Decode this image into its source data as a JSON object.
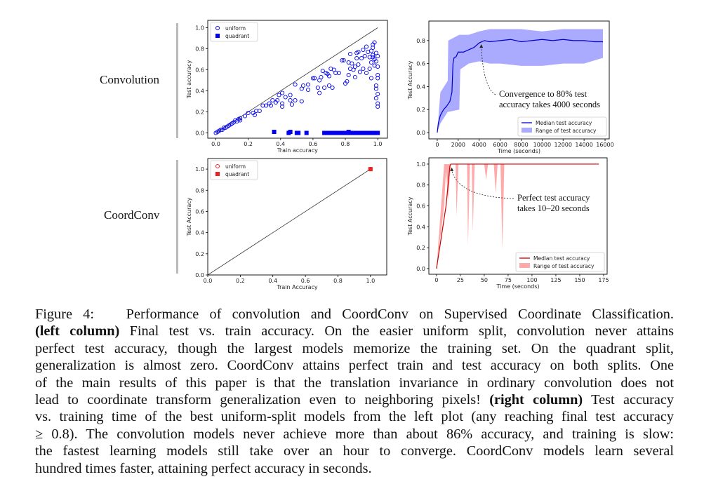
{
  "rows": {
    "top": "Convolution",
    "bottom": "CoordConv"
  },
  "chart_data": [
    {
      "type": "scatter",
      "xlabel": "Train accuracy",
      "ylabel": "Test accuracy",
      "xlim": [
        -0.05,
        1.06
      ],
      "ylim": [
        -0.05,
        1.07
      ],
      "xticks": [
        "0.0",
        "0.2",
        "0.4",
        "0.6",
        "0.8",
        "1.0"
      ],
      "yticks": [
        "0.0",
        "0.2",
        "0.4",
        "0.6",
        "0.8",
        "1.0"
      ],
      "legend": "top-left",
      "color": "#0000ee",
      "series": [
        {
          "name": "uniform",
          "marker": "open-circle",
          "points": [
            [
              0,
              0
            ],
            [
              0.01,
              0.01
            ],
            [
              0.02,
              0.02
            ],
            [
              0.03,
              0.03
            ],
            [
              0.04,
              0.03
            ],
            [
              0.05,
              0.05
            ],
            [
              0.06,
              0.05
            ],
            [
              0.07,
              0.06
            ],
            [
              0.08,
              0.07
            ],
            [
              0.09,
              0.08
            ],
            [
              0.1,
              0.09
            ],
            [
              0.11,
              0.1
            ],
            [
              0.12,
              0.12
            ],
            [
              0.13,
              0.11
            ],
            [
              0.14,
              0.13
            ],
            [
              0.15,
              0.14
            ],
            [
              0.15,
              0.12
            ],
            [
              0.18,
              0.16
            ],
            [
              0.2,
              0.19
            ],
            [
              0.23,
              0.19
            ],
            [
              0.24,
              0.17
            ],
            [
              0.25,
              0.21
            ],
            [
              0.27,
              0.21
            ],
            [
              0.29,
              0.26
            ],
            [
              0.31,
              0.26
            ],
            [
              0.33,
              0.28
            ],
            [
              0.34,
              0.26
            ],
            [
              0.35,
              0.31
            ],
            [
              0.37,
              0.29
            ],
            [
              0.38,
              0.31
            ],
            [
              0.39,
              0.36
            ],
            [
              0.41,
              0.28
            ],
            [
              0.41,
              0.25
            ],
            [
              0.41,
              0.38
            ],
            [
              0.43,
              0.34
            ],
            [
              0.46,
              0.36
            ],
            [
              0.46,
              0.31
            ],
            [
              0.47,
              0.27
            ],
            [
              0.49,
              0.31
            ],
            [
              0.49,
              0.46
            ],
            [
              0.53,
              0.42
            ],
            [
              0.54,
              0.45
            ],
            [
              0.53,
              0.3
            ],
            [
              0.57,
              0.41
            ],
            [
              0.57,
              0.46
            ],
            [
              0.6,
              0.52
            ],
            [
              0.61,
              0.52
            ],
            [
              0.63,
              0.43
            ],
            [
              0.64,
              0.38
            ],
            [
              0.64,
              0.5
            ],
            [
              0.65,
              0.53
            ],
            [
              0.66,
              0.59
            ],
            [
              0.67,
              0.43
            ],
            [
              0.68,
              0.57
            ],
            [
              0.69,
              0.56
            ],
            [
              0.7,
              0.45
            ],
            [
              0.7,
              0.54
            ],
            [
              0.71,
              0.61
            ],
            [
              0.72,
              0.43
            ],
            [
              0.73,
              0.6
            ],
            [
              0.74,
              0.57
            ],
            [
              0.76,
              0.57
            ],
            [
              0.78,
              0.69
            ],
            [
              0.79,
              0.69
            ],
            [
              0.8,
              0.47
            ],
            [
              0.81,
              0.49
            ],
            [
              0.82,
              0.67
            ],
            [
              0.82,
              0.55
            ],
            [
              0.83,
              0.61
            ],
            [
              0.83,
              0.75
            ],
            [
              0.84,
              0.66
            ],
            [
              0.85,
              0.6
            ],
            [
              0.86,
              0.53
            ],
            [
              0.86,
              0.63
            ],
            [
              0.87,
              0.71
            ],
            [
              0.87,
              0.76
            ],
            [
              0.88,
              0.65
            ],
            [
              0.88,
              0.77
            ],
            [
              0.89,
              0.58
            ],
            [
              0.9,
              0.71
            ],
            [
              0.91,
              0.61
            ],
            [
              0.91,
              0.79
            ],
            [
              0.92,
              0.73
            ],
            [
              0.93,
              0.57
            ],
            [
              0.93,
              0.82
            ],
            [
              0.94,
              0.77
            ],
            [
              0.95,
              0.72
            ],
            [
              0.95,
              0.61
            ],
            [
              0.96,
              0.52
            ],
            [
              0.96,
              0.67
            ],
            [
              0.97,
              0.81
            ],
            [
              0.97,
              0.84
            ],
            [
              0.97,
              0.74
            ],
            [
              0.98,
              0.86
            ],
            [
              0.98,
              0.7
            ],
            [
              0.98,
              0.64
            ],
            [
              0.99,
              0.45
            ],
            [
              0.99,
              0.42
            ],
            [
              0.99,
              0.33
            ],
            [
              0.99,
              0.76
            ],
            [
              1.0,
              0.63
            ],
            [
              1.0,
              0.55
            ],
            [
              1.0,
              0.52
            ],
            [
              1.0,
              0.37
            ],
            [
              1.0,
              0.28
            ],
            [
              1.0,
              0.25
            ],
            [
              1.0,
              0.73
            ],
            [
              0.99,
              0.68
            ],
            [
              0.97,
              0.72
            ],
            [
              0.96,
              0.78
            ]
          ]
        },
        {
          "name": "quadrant",
          "marker": "filled-square",
          "points": [
            [
              0.36,
              0.01
            ],
            [
              0.45,
              0
            ],
            [
              0.46,
              0.01
            ],
            [
              0.5,
              0
            ],
            [
              0.51,
              0
            ],
            [
              0.56,
              0
            ],
            [
              0.67,
              0
            ],
            [
              0.69,
              0
            ],
            [
              0.71,
              0
            ],
            [
              0.72,
              0
            ],
            [
              0.73,
              0
            ],
            [
              0.74,
              0
            ],
            [
              0.75,
              0
            ],
            [
              0.76,
              0
            ],
            [
              0.77,
              0
            ],
            [
              0.78,
              0
            ],
            [
              0.79,
              0
            ],
            [
              0.8,
              0
            ],
            [
              0.81,
              0
            ],
            [
              0.82,
              0.01
            ],
            [
              0.83,
              0
            ],
            [
              0.84,
              0
            ],
            [
              0.85,
              0
            ],
            [
              0.86,
              0
            ],
            [
              0.87,
              0
            ],
            [
              0.88,
              0
            ],
            [
              0.89,
              0
            ],
            [
              0.9,
              0
            ],
            [
              0.91,
              0
            ],
            [
              0.92,
              0
            ],
            [
              0.93,
              0
            ],
            [
              0.94,
              0
            ],
            [
              0.95,
              0
            ],
            [
              0.96,
              0
            ],
            [
              0.97,
              0
            ],
            [
              0.98,
              0
            ],
            [
              0.99,
              0
            ],
            [
              1.0,
              0
            ]
          ]
        }
      ],
      "reference_line": "y = x"
    },
    {
      "type": "line",
      "xlabel": "Time (seconds)",
      "ylabel": "Test Accuracy",
      "xlim": [
        -800,
        16400
      ],
      "ylim": [
        -0.055,
        0.97
      ],
      "xticks": [
        "0",
        "2000",
        "4000",
        "6000",
        "8000",
        "10000",
        "12000",
        "14000",
        "16000"
      ],
      "yticks": [
        "0.0",
        "0.2",
        "0.4",
        "0.6",
        "0.8"
      ],
      "legend": "bottom-right",
      "line_color": "#0000cc",
      "band_color": "#aaaaff",
      "series": [
        {
          "name": "Median test accuracy",
          "x": [
            0,
            100,
            300,
            600,
            900,
            1200,
            1400,
            1500,
            1600,
            1800,
            2000,
            2500,
            3000,
            3500,
            4000,
            4500,
            5000,
            6000,
            7000,
            8000,
            9000,
            10000,
            11000,
            12000,
            13000,
            14000,
            15000,
            15800
          ],
          "y": [
            0,
            0.08,
            0.15,
            0.2,
            0.23,
            0.27,
            0.35,
            0.6,
            0.65,
            0.66,
            0.7,
            0.7,
            0.72,
            0.74,
            0.78,
            0.8,
            0.79,
            0.8,
            0.81,
            0.79,
            0.8,
            0.81,
            0.8,
            0.81,
            0.8,
            0.8,
            0.79,
            0.79
          ]
        },
        {
          "name": "Range of test accuracy",
          "x": [
            0,
            300,
            1000,
            1050,
            2100,
            2200,
            3000,
            4000,
            5000,
            6000,
            8000,
            10000,
            12000,
            14000,
            15800
          ],
          "lower": [
            0,
            0.08,
            0.18,
            0.18,
            0.2,
            0.55,
            0.6,
            0.62,
            0.6,
            0.6,
            0.58,
            0.58,
            0.6,
            0.6,
            0.65
          ],
          "upper": [
            0,
            0.35,
            0.45,
            0.8,
            0.85,
            0.85,
            0.85,
            0.88,
            0.9,
            0.9,
            0.9,
            0.88,
            0.9,
            0.9,
            0.9
          ]
        }
      ],
      "annotation": {
        "lines": [
          "Convergence to 80% test",
          "accuracy takes 4000 seconds"
        ],
        "target": [
          4200,
          0.78
        ]
      }
    },
    {
      "type": "scatter",
      "xlabel": "Train Accuracy",
      "ylabel": "Test Accuracy",
      "xlim": [
        0,
        1.1
      ],
      "ylim": [
        0,
        1.1
      ],
      "xticks": [
        "0.0",
        "0.2",
        "0.4",
        "0.6",
        "0.8",
        "1.0"
      ],
      "yticks": [
        "0.0",
        "0.2",
        "0.4",
        "0.6",
        "0.8",
        "1.0"
      ],
      "legend": "top-left",
      "color": "#ee2222",
      "series": [
        {
          "name": "uniform",
          "marker": "open-circle",
          "points": [
            [
              1.0,
              1.0
            ]
          ]
        },
        {
          "name": "quadrant",
          "marker": "filled-square",
          "points": [
            [
              1.0,
              1.0
            ]
          ]
        }
      ],
      "reference_line": "y = x"
    },
    {
      "type": "line",
      "xlabel": "Time (seconds)",
      "ylabel": "Test Accuracy",
      "xlim": [
        -8,
        178.7
      ],
      "ylim": [
        -0.054,
        1.06
      ],
      "xticks": [
        "0",
        "25",
        "50",
        "75",
        "100",
        "125",
        "150",
        "175"
      ],
      "yticks": [
        "0.0",
        "0.2",
        "0.4",
        "0.6",
        "0.8",
        "1.0"
      ],
      "legend": "bottom-right",
      "line_color": "#cc0000",
      "band_color": "#ffaaaa",
      "series": [
        {
          "name": "Median test accuracy",
          "x": [
            0,
            5,
            10,
            14,
            15,
            170
          ],
          "y": [
            0,
            0.3,
            0.6,
            0.98,
            1.0,
            1.0
          ]
        },
        {
          "name": "Range of test accuracy",
          "x": [
            0,
            8,
            10,
            12,
            15,
            20,
            21,
            23,
            32,
            33,
            35,
            37,
            38,
            40,
            50,
            52,
            54,
            60,
            62,
            64,
            67,
            69,
            71,
            170
          ],
          "lower": [
            0,
            0.6,
            0.95,
            0.65,
            1,
            1,
            0.5,
            1,
            1,
            0.22,
            1,
            1,
            0.35,
            1,
            1,
            0.85,
            1,
            1,
            0.72,
            1,
            1,
            0.18,
            1,
            1
          ],
          "upper": [
            0,
            1,
            1,
            1,
            1,
            1,
            1,
            1,
            1,
            1,
            1,
            1,
            1,
            1,
            1,
            1,
            1,
            1,
            1,
            1,
            1,
            1,
            1,
            1
          ]
        }
      ],
      "annotation": {
        "lines": [
          "Perfect test accuracy",
          "takes 10–20 seconds"
        ],
        "target": [
          16,
          0.98
        ]
      }
    }
  ],
  "caption": {
    "l1": "Figure 4:   Performance of convolution and CoordConv on Supervised Coordinate Classification.",
    "l2_bold": "(left column)",
    "l2": " Final test vs. train accuracy. On the easier uniform split, convolution never attains",
    "l3": "perfect test accuracy, though the largest models memorize the training set. On the quadrant split,",
    "l4": "generalization is almost zero. CoordConv attains perfect train and test accuracy on both splits. One",
    "l5": "of the main results of this paper is that the translation invariance in ordinary convolution does not",
    "l6": "lead to coordinate transform generalization even to neighboring pixels! ",
    "l6_bold": "(right column)",
    "l6_end": " Test accuracy",
    "l7": "vs. training time of the best uniform-split models from the left plot (any reaching final test accuracy",
    "l8": "≥ 0.8). The convolution models never achieve more than about 86% accuracy, and training is slow:",
    "l9": "the fastest learning models still take over an hour to converge. CoordConv models learn several",
    "l10": "hundred times faster, attaining perfect accuracy in seconds."
  }
}
